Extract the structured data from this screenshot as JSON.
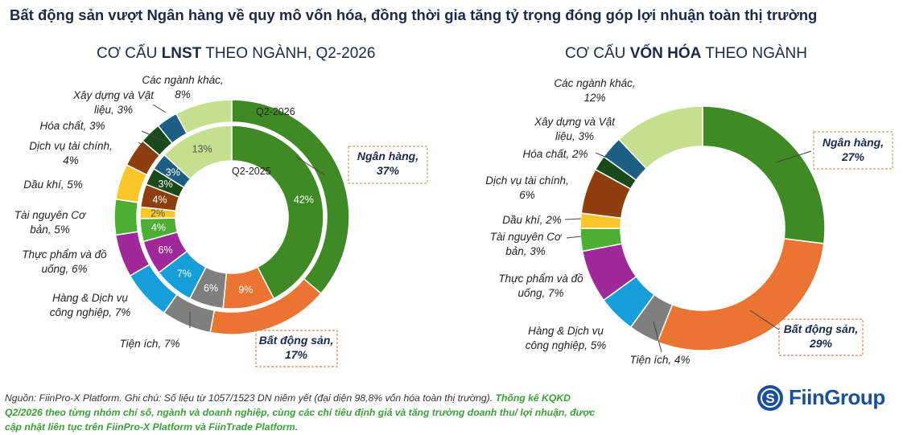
{
  "headline": "Bất động sản vượt Ngân hàng về quy mô vốn hóa, đồng thời gia tăng tỷ trọng đóng góp lợi nhuận toàn thị trường",
  "chart1_title": {
    "pre": "CƠ CẤU ",
    "bold": "LNST",
    "post": " THEO NGÀNH, Q2-2026"
  },
  "chart2_title": {
    "pre": "CƠ CẤU ",
    "bold": "VỐN HÓA",
    "post": " THEO NGÀNH"
  },
  "colors": {
    "ngan_hang": "#3f8a24",
    "bat_dong_san": "#ea7431",
    "tien_ich": "#7f7f7f",
    "hang_dich_vu": "#159ed8",
    "thuc_pham": "#a0299a",
    "tai_nguyen": "#4caf34",
    "dau_khi": "#fbc62a",
    "dich_vu_tc": "#8d3f10",
    "hoa_chat": "#1a4a1c",
    "xay_dung": "#1c5f82",
    "khac": "#c4df8e",
    "highlight_border": "#c4a55a",
    "highlight_border_bds": "#e8804a"
  },
  "chart_data": [
    {
      "type": "pie",
      "title": "CƠ CẤU LNST THEO NGÀNH, Q2-2026",
      "series": [
        {
          "name": "Q2-2026",
          "categories": [
            "Ngân hàng",
            "Bất động sản",
            "Tiện ích",
            "Hàng & Dịch vụ công nghiệp",
            "Thực phẩm và đồ uống",
            "Tài nguyên Cơ bản",
            "Dầu khí",
            "Dịch vụ tài chính",
            "Hóa chất",
            "Xây dựng và Vật liệu",
            "Các ngành khác"
          ],
          "values": [
            37,
            17,
            7,
            7,
            6,
            5,
            5,
            4,
            3,
            3,
            8
          ],
          "labels": [
            [
              "Ngân hàng,",
              "37%"
            ],
            [
              "Bất động sản,",
              "17%"
            ],
            [
              "Tiện ích, 7%"
            ],
            [
              "Hàng & Dịch vụ",
              "công nghiệp, 7%"
            ],
            [
              "Thực phẩm và đồ",
              "uống, 6%"
            ],
            [
              "Tài nguyên Cơ",
              "bản, 5%"
            ],
            [
              "Dầu khí, 5%"
            ],
            [
              "Dịch vụ tài chính,",
              "4%"
            ],
            [
              "Hóa chất, 3%"
            ],
            [
              "Xây dựng và Vật",
              "liệu, 3%"
            ],
            [
              "Các ngành khác,",
              "8%"
            ]
          ]
        },
        {
          "name": "Q2-2025",
          "categories": [
            "Ngân hàng",
            "Bất động sản",
            "Tiện ích",
            "Hàng & Dịch vụ công nghiệp",
            "Thực phẩm và đồ uống",
            "Tài nguyên Cơ bản",
            "Dầu khí",
            "Dịch vụ tài chính",
            "Hóa chất",
            "Xây dựng và Vật liệu",
            "Các ngành khác"
          ],
          "values": [
            42,
            9,
            6,
            7,
            6,
            4,
            2,
            4,
            3,
            3,
            13
          ],
          "labels": [
            "42%",
            "9%",
            "6%",
            "7%",
            "6%",
            "4%",
            "2%",
            "4%",
            "3%",
            "3%",
            "13%"
          ]
        }
      ]
    },
    {
      "type": "pie",
      "title": "CƠ CẤU VỐN HÓA THEO NGÀNH",
      "categories": [
        "Ngân hàng",
        "Bất động sản",
        "Tiện ích",
        "Hàng & Dịch vụ công nghiệp",
        "Thực phẩm và đồ uống",
        "Tài nguyên Cơ bản",
        "Dầu khí",
        "Dịch vụ tài chính",
        "Hóa chất",
        "Xây dựng và Vật liệu",
        "Các ngành khác"
      ],
      "values": [
        27,
        29,
        4,
        5,
        7,
        3,
        2,
        6,
        2,
        3,
        12
      ],
      "labels": [
        [
          "Ngân hàng,",
          "27%"
        ],
        [
          "Bất động sản,",
          "29%"
        ],
        [
          "Tiện ích, 4%"
        ],
        [
          "Hàng & Dịch vụ",
          "công nghiệp, 5%"
        ],
        [
          "Thực phẩm và đồ",
          "uống, 7%"
        ],
        [
          "Tài nguyên Cơ",
          "bản, 3%"
        ],
        [
          "Dầu khí, 2%"
        ],
        [
          "Dịch vụ tài chính,",
          "6%"
        ],
        [
          "Hóa chất, 2%"
        ],
        [
          "Xây dựng và Vật",
          "liệu, 3%"
        ],
        [
          "Các ngành khác,",
          "12%"
        ]
      ]
    }
  ],
  "footer": {
    "source": "Nguồn: FiinPro-X Platform. Ghi chú: Số liệu từ 1057/1523 DN niêm yết (đại diện 98,8% vốn hóa toàn thị trường). ",
    "highlight": "Thống kê KQKD Q2/2026 theo từng nhóm chỉ số, ngành và doanh nghiệp, cùng các chỉ tiêu định giá và tăng trưởng doanh thu/ lợi nhuận, được cập nhật liên tục trên FiinPro-X Platform và FiinTrade Platform."
  },
  "logo_text": "FiinGroup"
}
